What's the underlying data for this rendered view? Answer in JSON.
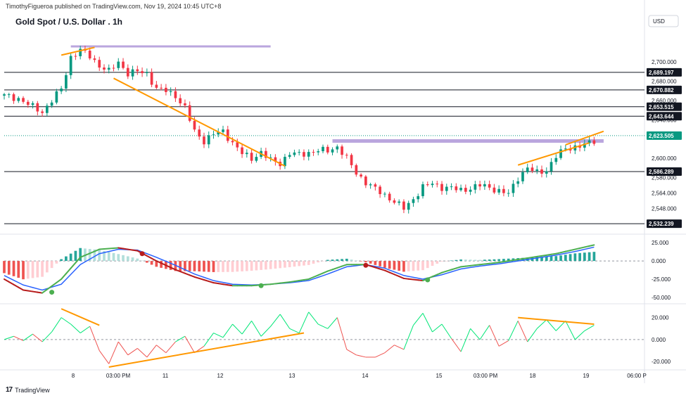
{
  "header": {
    "published": "TimothyFigueroa published on TradingView.com, Nov 19, 2024 10:45 UTC+8"
  },
  "chart_data": {
    "type": "candlestick",
    "title": "Gold Spot / U.S. Dollar . 1h",
    "currency": "USD",
    "x_ticks": [
      "8",
      "03:00 PM",
      "11",
      "12",
      "13",
      "14",
      "15",
      "03:00 PM",
      "18",
      "19",
      "06:00 P"
    ],
    "price_axis": {
      "ylim": [
        2525,
        2735
      ],
      "ticks": [
        2700,
        2680,
        2660,
        2640,
        2600,
        2580,
        2564,
        2548
      ],
      "tick_labels": [
        "2,700.000",
        "2,680.000",
        "2,660.000",
        "2,640.000",
        "2,600.000",
        "2,580.000",
        "2,564.000",
        "2,548.000"
      ]
    },
    "price_path": [
      [
        0,
        2665
      ],
      [
        3,
        2662
      ],
      [
        5,
        2656
      ],
      [
        8,
        2648
      ],
      [
        10,
        2660
      ],
      [
        12,
        2672
      ],
      [
        14,
        2705
      ],
      [
        16,
        2712
      ],
      [
        18,
        2706
      ],
      [
        20,
        2696
      ],
      [
        22,
        2690
      ],
      [
        24,
        2700
      ],
      [
        26,
        2688
      ],
      [
        28,
        2690
      ],
      [
        30,
        2688
      ],
      [
        32,
        2672
      ],
      [
        34,
        2670
      ],
      [
        36,
        2665
      ],
      [
        38,
        2652
      ],
      [
        40,
        2628
      ],
      [
        42,
        2618
      ],
      [
        44,
        2625
      ],
      [
        46,
        2628
      ],
      [
        48,
        2616
      ],
      [
        50,
        2605
      ],
      [
        52,
        2600
      ],
      [
        54,
        2606
      ],
      [
        56,
        2598
      ],
      [
        58,
        2595
      ],
      [
        60,
        2605
      ],
      [
        62,
        2604
      ],
      [
        64,
        2606
      ],
      [
        66,
        2608
      ],
      [
        68,
        2608
      ],
      [
        70,
        2612
      ],
      [
        72,
        2600
      ],
      [
        74,
        2585
      ],
      [
        76,
        2575
      ],
      [
        78,
        2568
      ],
      [
        80,
        2562
      ],
      [
        82,
        2555
      ],
      [
        84,
        2548
      ],
      [
        86,
        2558
      ],
      [
        88,
        2570
      ],
      [
        90,
        2574
      ],
      [
        92,
        2570
      ],
      [
        94,
        2569
      ],
      [
        96,
        2567
      ],
      [
        98,
        2569
      ],
      [
        100,
        2572
      ],
      [
        102,
        2570
      ],
      [
        104,
        2566
      ],
      [
        106,
        2563
      ],
      [
        108,
        2580
      ],
      [
        110,
        2590
      ],
      [
        112,
        2585
      ],
      [
        114,
        2588
      ],
      [
        116,
        2602
      ],
      [
        118,
        2610
      ],
      [
        120,
        2612
      ],
      [
        122,
        2614
      ],
      [
        124,
        2618
      ]
    ],
    "horizontal_levels": [
      {
        "value": 2689.197,
        "label": "2,689.197"
      },
      {
        "value": 2670.882,
        "label": "2,670.882"
      },
      {
        "value": 2653.515,
        "label": "2,653.515"
      },
      {
        "value": 2643.644,
        "label": "2,643.644"
      },
      {
        "value": 2586.289,
        "label": "2,586.289"
      },
      {
        "value": 2532.239,
        "label": "2,532.239"
      }
    ],
    "current_price": {
      "value": 2623.505,
      "label": "2,623.505",
      "color": "#089981"
    },
    "resistance_zones": [
      {
        "x1": 14,
        "x2": 56,
        "value": 2716,
        "color": "#b39ddb"
      },
      {
        "x1": 69,
        "x2": 126,
        "value": 2618,
        "color": "#b39ddb"
      }
    ],
    "trendlines": [
      {
        "x1": 12,
        "y1": 2707,
        "x2": 19,
        "y2": 2715,
        "color": "#ff9800"
      },
      {
        "x1": 23,
        "y1": 2683,
        "x2": 59,
        "y2": 2592,
        "color": "#ff9800"
      },
      {
        "x1": 108,
        "y1": 2593,
        "x2": 123,
        "y2": 2616,
        "color": "#ff9800"
      },
      {
        "x1": 118,
        "y1": 2614,
        "x2": 126,
        "y2": 2628,
        "color": "#ff9800"
      }
    ],
    "macd_pane": {
      "ylim": [
        -55,
        32
      ],
      "ticks": [
        25,
        0,
        -25,
        -50
      ],
      "tick_labels": [
        "25.000",
        "0.000",
        "-25.000",
        "-50.000"
      ],
      "macd": [
        [
          0,
          -25
        ],
        [
          4,
          -40
        ],
        [
          8,
          -44
        ],
        [
          12,
          -25
        ],
        [
          16,
          5
        ],
        [
          20,
          16
        ],
        [
          24,
          18
        ],
        [
          28,
          14
        ],
        [
          32,
          0
        ],
        [
          36,
          -12
        ],
        [
          40,
          -22
        ],
        [
          44,
          -30
        ],
        [
          48,
          -34
        ],
        [
          52,
          -34
        ],
        [
          56,
          -32
        ],
        [
          60,
          -29
        ],
        [
          64,
          -25
        ],
        [
          68,
          -14
        ],
        [
          72,
          -5
        ],
        [
          76,
          -5
        ],
        [
          80,
          -13
        ],
        [
          84,
          -24
        ],
        [
          88,
          -27
        ],
        [
          92,
          -16
        ],
        [
          96,
          -8
        ],
        [
          100,
          -5
        ],
        [
          104,
          -2
        ],
        [
          108,
          2
        ],
        [
          112,
          6
        ],
        [
          116,
          10
        ],
        [
          120,
          16
        ],
        [
          124,
          22
        ]
      ],
      "signal": [
        [
          0,
          -20
        ],
        [
          4,
          -33
        ],
        [
          8,
          -40
        ],
        [
          12,
          -32
        ],
        [
          16,
          -5
        ],
        [
          20,
          10
        ],
        [
          24,
          16
        ],
        [
          28,
          15
        ],
        [
          32,
          5
        ],
        [
          36,
          -6
        ],
        [
          40,
          -18
        ],
        [
          44,
          -27
        ],
        [
          48,
          -32
        ],
        [
          52,
          -33
        ],
        [
          56,
          -32
        ],
        [
          60,
          -30
        ],
        [
          64,
          -27
        ],
        [
          68,
          -18
        ],
        [
          72,
          -8
        ],
        [
          76,
          -5
        ],
        [
          80,
          -10
        ],
        [
          84,
          -20
        ],
        [
          88,
          -25
        ],
        [
          92,
          -19
        ],
        [
          96,
          -11
        ],
        [
          100,
          -7
        ],
        [
          104,
          -4
        ],
        [
          108,
          0
        ],
        [
          112,
          4
        ],
        [
          116,
          8
        ],
        [
          120,
          13
        ],
        [
          124,
          19
        ]
      ],
      "signal_dots": [
        {
          "x": 10,
          "value": -43,
          "color": "#4caf50"
        },
        {
          "x": 29,
          "value": 10,
          "color": "#b71c1c"
        },
        {
          "x": 54,
          "value": -34,
          "color": "#4caf50"
        },
        {
          "x": 76,
          "value": -6,
          "color": "#b71c1c"
        },
        {
          "x": 89,
          "value": -26,
          "color": "#4caf50"
        }
      ],
      "colors": {
        "macd_up": "#4caf50",
        "macd_down": "#b71c1c",
        "signal": "#2962ff",
        "hist_pos": "#26a69a",
        "hist_neg": "#ef5350"
      }
    },
    "osc_pane": {
      "ylim": [
        -25,
        30
      ],
      "ticks": [
        20,
        0,
        -20
      ],
      "tick_labels": [
        "20.000",
        "0.000",
        "-20.000"
      ],
      "series": [
        [
          0,
          0
        ],
        [
          2,
          3
        ],
        [
          4,
          -1
        ],
        [
          6,
          5
        ],
        [
          8,
          -2
        ],
        [
          10,
          7
        ],
        [
          12,
          20
        ],
        [
          14,
          14
        ],
        [
          16,
          6
        ],
        [
          18,
          12
        ],
        [
          20,
          -10
        ],
        [
          22,
          -22
        ],
        [
          24,
          -2
        ],
        [
          26,
          -14
        ],
        [
          28,
          -8
        ],
        [
          30,
          -16
        ],
        [
          32,
          -5
        ],
        [
          34,
          -12
        ],
        [
          36,
          -2
        ],
        [
          38,
          3
        ],
        [
          40,
          -12
        ],
        [
          42,
          -6
        ],
        [
          44,
          6
        ],
        [
          46,
          2
        ],
        [
          48,
          14
        ],
        [
          50,
          5
        ],
        [
          52,
          17
        ],
        [
          54,
          3
        ],
        [
          56,
          12
        ],
        [
          58,
          23
        ],
        [
          60,
          10
        ],
        [
          62,
          6
        ],
        [
          64,
          25
        ],
        [
          66,
          14
        ],
        [
          68,
          10
        ],
        [
          70,
          20
        ],
        [
          72,
          -9
        ],
        [
          74,
          -14
        ],
        [
          76,
          -16
        ],
        [
          78,
          -16
        ],
        [
          80,
          -12
        ],
        [
          82,
          -5
        ],
        [
          84,
          -9
        ],
        [
          86,
          13
        ],
        [
          88,
          24
        ],
        [
          90,
          7
        ],
        [
          92,
          14
        ],
        [
          94,
          1
        ],
        [
          96,
          -11
        ],
        [
          98,
          10
        ],
        [
          100,
          0
        ],
        [
          102,
          13
        ],
        [
          104,
          -6
        ],
        [
          106,
          -1
        ],
        [
          108,
          17
        ],
        [
          110,
          -2
        ],
        [
          112,
          10
        ],
        [
          114,
          18
        ],
        [
          116,
          8
        ],
        [
          118,
          17
        ],
        [
          120,
          0
        ],
        [
          122,
          8
        ],
        [
          124,
          13
        ]
      ],
      "trendlines": [
        {
          "x1": 12,
          "y1": 28,
          "x2": 20,
          "y2": 13,
          "color": "#ff9800"
        },
        {
          "x1": 22,
          "y1": -25,
          "x2": 63,
          "y2": 6,
          "color": "#ff9800"
        },
        {
          "x1": 108,
          "y1": 20,
          "x2": 124,
          "y2": 14,
          "color": "#ff9800"
        }
      ],
      "colors": {
        "up": "#4caf50",
        "down": "#ef5350",
        "up_fill": "#00e676",
        "down_fill": "#ff5252"
      }
    }
  },
  "branding": {
    "logo": "17",
    "name": "TradingView"
  }
}
